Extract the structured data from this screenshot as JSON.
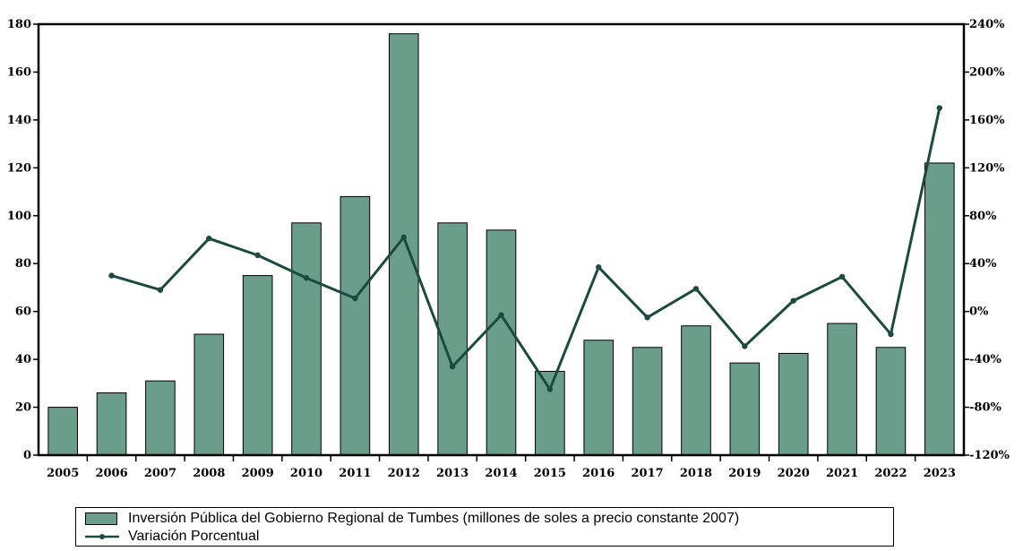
{
  "chart_data": {
    "type": "bar",
    "categories": [
      "2005",
      "2006",
      "2007",
      "2008",
      "2009",
      "2010",
      "2011",
      "2012",
      "2013",
      "2014",
      "2015",
      "2016",
      "2017",
      "2018",
      "2019",
      "2020",
      "2021",
      "2022",
      "2023"
    ],
    "series": [
      {
        "name": "Inversión Pública del Gobierno Regional de Tumbes (millones de soles a precio constante 2007)",
        "type": "bar",
        "axis": "left",
        "color": "#6b9e8a",
        "values": [
          20,
          26,
          31,
          50.5,
          75,
          97,
          108,
          176,
          97,
          94,
          35,
          48,
          45,
          54,
          38.5,
          42.5,
          55,
          45,
          122
        ]
      },
      {
        "name": "Variación Porcentual",
        "type": "line",
        "axis": "right",
        "color": "#1d4a40",
        "values": [
          null,
          30,
          18,
          61,
          47,
          28,
          11,
          62,
          -46,
          -3,
          -65,
          37,
          -5,
          19,
          -29,
          9,
          29,
          -19,
          170
        ]
      }
    ],
    "yaxis_left": {
      "range": [
        0,
        180
      ],
      "ticks": [
        "0",
        "20",
        "40",
        "60",
        "80",
        "100",
        "120",
        "140",
        "160",
        "180"
      ]
    },
    "yaxis_right": {
      "range": [
        -120,
        240
      ],
      "ticks": [
        "-120%",
        "-80%",
        "-40%",
        "0%",
        "40%",
        "80%",
        "120%",
        "160%",
        "200%",
        "240%"
      ]
    },
    "grid": false,
    "legend_position": "bottom",
    "legend": [
      "Inversión Pública del Gobierno Regional de Tumbes (millones de soles a precio constante 2007)",
      "Variación Porcentual"
    ]
  }
}
